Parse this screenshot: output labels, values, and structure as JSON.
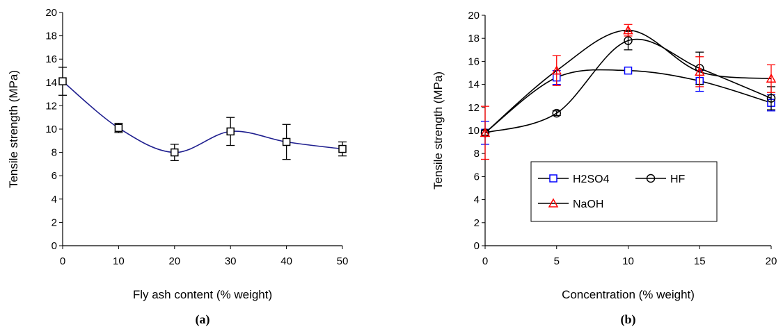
{
  "chart_data": [
    {
      "type": "line",
      "panel_label": "(a)",
      "xlabel": "Fly ash content (% weight)",
      "ylabel": "Tensile strength (MPa)",
      "xlim": [
        0,
        50
      ],
      "ylim": [
        0,
        20
      ],
      "xticks": [
        0,
        10,
        20,
        30,
        40,
        50
      ],
      "yticks": [
        0,
        2,
        4,
        6,
        8,
        10,
        12,
        14,
        16,
        18,
        20
      ],
      "grid": false,
      "legend": null,
      "series": [
        {
          "marker": "square",
          "line_color": "#1f1f8f",
          "marker_color": "#000000",
          "x": [
            0,
            10,
            20,
            30,
            40,
            50
          ],
          "y": [
            14.1,
            10.1,
            8.0,
            9.8,
            8.9,
            8.3
          ],
          "error": [
            1.2,
            0.4,
            0.7,
            1.2,
            1.5,
            0.6
          ]
        }
      ]
    },
    {
      "type": "line",
      "panel_label": "(b)",
      "xlabel": "Concentration (% weight)",
      "ylabel": "Tensile strength (MPa)",
      "xlim": [
        0,
        20
      ],
      "ylim": [
        0,
        20
      ],
      "xticks": [
        0,
        5,
        10,
        15,
        20
      ],
      "yticks": [
        0,
        2,
        4,
        6,
        8,
        10,
        12,
        14,
        16,
        18,
        20
      ],
      "grid": false,
      "legend": "lower-center",
      "series": [
        {
          "name": "H2SO4",
          "marker": "square",
          "color": "#0000ff",
          "x": [
            0,
            5,
            10,
            15,
            20
          ],
          "y": [
            9.8,
            14.6,
            15.2,
            14.3,
            12.4
          ],
          "error": [
            1.0,
            0.6,
            0.0,
            0.9,
            0.7
          ]
        },
        {
          "name": "HF",
          "marker": "circle",
          "color": "#000000",
          "x": [
            0,
            5,
            10,
            15,
            20
          ],
          "y": [
            9.8,
            11.5,
            17.8,
            15.4,
            12.8
          ],
          "error": [
            0.2,
            0.2,
            0.8,
            1.4,
            1.0
          ]
        },
        {
          "name": "NaOH",
          "marker": "triangle",
          "color": "#ff0000",
          "x": [
            0,
            5,
            10,
            15,
            20
          ],
          "y": [
            9.8,
            15.2,
            18.7,
            15.1,
            14.5
          ],
          "error": [
            2.3,
            1.3,
            0.5,
            1.3,
            1.2
          ]
        }
      ]
    }
  ]
}
